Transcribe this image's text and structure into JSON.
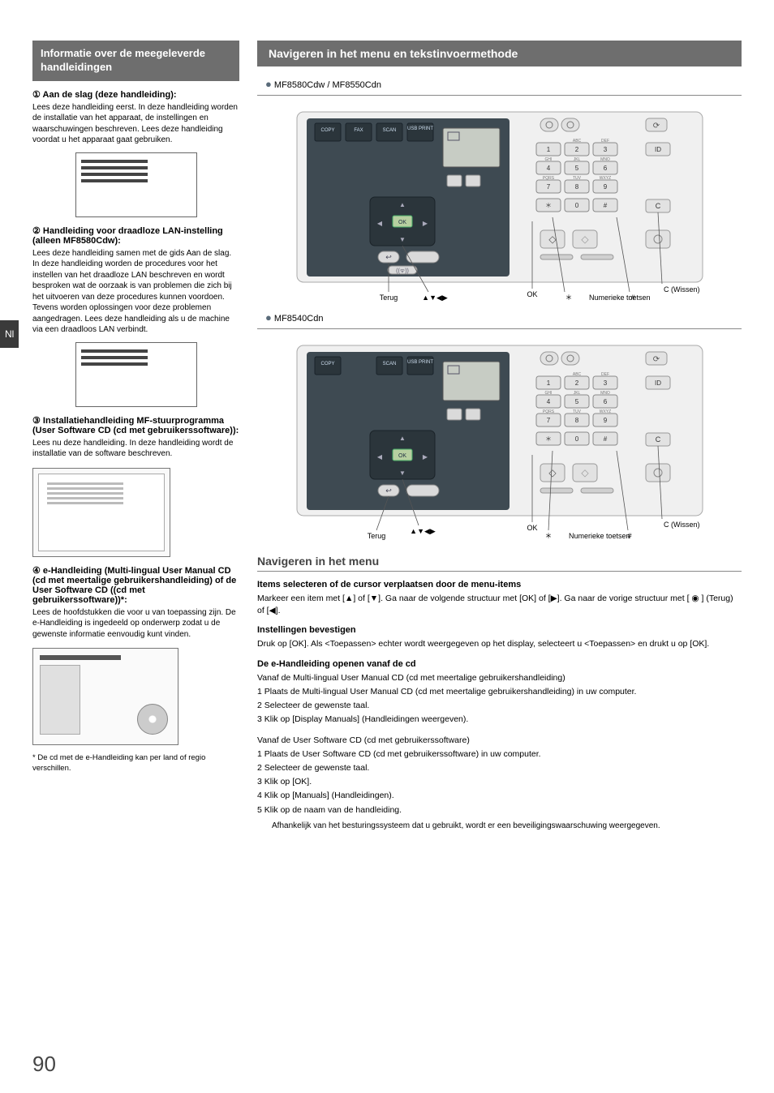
{
  "lang_tab": "Nl",
  "page_number": "90",
  "left": {
    "header": "Informatie over de meegeleverde handleidingen",
    "s1_title": "① Aan de slag (deze handleiding):",
    "s1_body": "Lees deze handleiding eerst. In deze handleiding worden de installatie van het apparaat, de instellingen en waarschuwingen beschreven. Lees deze handleiding voordat u het apparaat gaat gebruiken.",
    "s2_title": "② Handleiding voor draadloze LAN-instelling (alleen MF8580Cdw):",
    "s2_body": "Lees deze handleiding samen met de gids Aan de slag. In deze handleiding worden de procedures voor het instellen van het draadloze LAN beschreven en wordt besproken wat de oorzaak is van problemen die zich bij het uitvoeren van deze procedures kunnen voordoen. Tevens worden oplossingen voor deze problemen aangedragen. Lees deze handleiding als u de machine via een draadloos LAN verbindt.",
    "s3_title": "③ Installatiehandleiding MF-stuurprogramma (User Software CD (cd met gebruikerssoftware)):",
    "s3_body": "Lees nu deze handleiding. In deze handleiding wordt de installatie van de software beschreven.",
    "s4_title": "④ e-Handleiding (Multi-lingual User Manual CD (cd met meertalige gebruikershandleiding) of de User Software CD ((cd met gebruikerssoftware))*:",
    "s4_body": "Lees de hoofdstukken die voor u van toepassing zijn. De e-Handleiding is ingedeeld op onderwerp zodat u de gewenste informatie eenvoudig kunt vinden.",
    "footnote": "* De cd met de e-Handleiding kan per land of regio verschillen."
  },
  "right": {
    "header": "Navigeren in het menu en tekstinvoermethode",
    "model1": "MF8580Cdw / MF8550Cdn",
    "model2": "MF8540Cdn",
    "callout_terug": "Terug",
    "callout_ok": "OK",
    "callout_arrows": "▲▼◀▶",
    "callout_numeric": "Numerieke toetsen",
    "callout_star": "＊",
    "callout_hash": "#",
    "callout_c": "C (Wissen)",
    "nav_h2": "Navigeren in het menu",
    "items_sub": "Items selecteren of de cursor verplaatsen door de menu-items",
    "items_body": "Markeer een item met [▲] of [▼]. Ga naar de volgende structuur met [OK] of [▶]. Ga naar de vorige structuur met [ ◉ ] (Terug) of [◀].",
    "confirm_sub": "Instellingen bevestigen",
    "confirm_body": "Druk op [OK]. Als <Toepassen> echter wordt weergegeven op het display, selecteert u <Toepassen> en drukt u op [OK].",
    "cd_sub": "De e-Handleiding openen vanaf de cd",
    "cd_intro1": "Vanaf de Multi-lingual User Manual CD (cd met meertalige gebruikershandleiding)",
    "cd_l1": "1 Plaats de Multi-lingual User Manual CD (cd met meertalige gebruikershandleiding) in uw computer.",
    "cd_l2": "2 Selecteer de gewenste taal.",
    "cd_l3": "3 Klik op [Display Manuals] (Handleidingen weergeven).",
    "cd_intro2": "Vanaf de User Software CD (cd met gebruikerssoftware)",
    "cd_u1": "1 Plaats de User Software CD (cd met gebruikerssoftware) in uw computer.",
    "cd_u2": "2 Selecteer de gewenste taal.",
    "cd_u3": "3 Klik op [OK].",
    "cd_u4": "4 Klik op [Manuals] (Handleidingen).",
    "cd_u5": "5 Klik op de naam van de handleiding.",
    "cd_note": "Afhankelijk van het besturingssysteem dat u gebruikt, wordt er een beveiligingswaarschuwing weergegeven."
  },
  "panel": {
    "copy": "COPY",
    "fax": "FAX",
    "scan": "SCAN",
    "usb": "USB PRINT",
    "keys": [
      "1",
      "2",
      "3",
      "4",
      "5",
      "6",
      "7",
      "8",
      "9",
      "＊",
      "0",
      "#"
    ],
    "key_labels": [
      "",
      "ABC",
      "DEF",
      "GHI",
      "JKL",
      "MNO",
      "PQRS",
      "TUV",
      "WXYZ",
      "",
      "",
      ""
    ],
    "ok": "OK",
    "id": "ID",
    "c": "C",
    "colors": {
      "panel": "#3e4a52",
      "light_panel": "#e8e8e8",
      "key": "#d9d9d9",
      "key_border": "#7a7a7a",
      "label": "#666"
    }
  }
}
